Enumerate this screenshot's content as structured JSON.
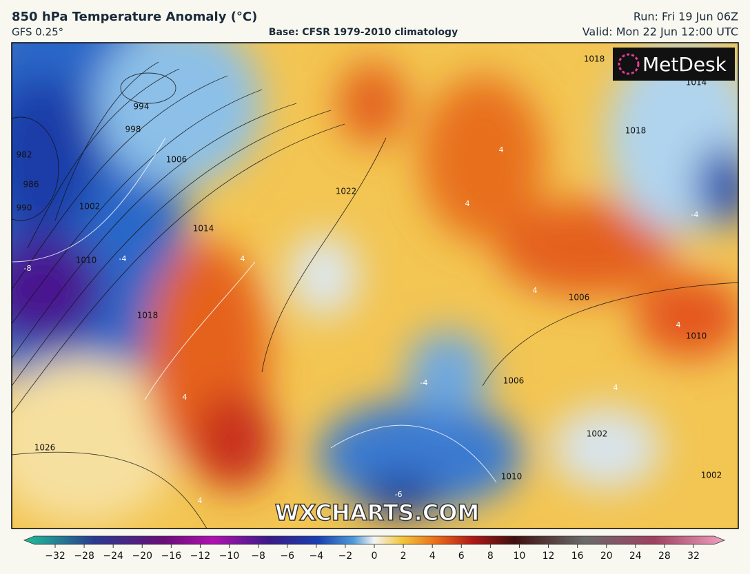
{
  "header": {
    "title": "850 hPa Temperature Anomaly (°C)",
    "model": "GFS 0.25°",
    "base": "Base: CFSR 1979-2010 climatology",
    "run": "Run: Fri 19 Jun 06Z",
    "valid": "Valid: Mon 22 Jun 12:00 UTC"
  },
  "map": {
    "logo": "MetDesk",
    "watermark": "WXCHARTS.COM",
    "isobar_labels": [
      "982",
      "986",
      "990",
      "994",
      "998",
      "1002",
      "1006",
      "1010",
      "1014",
      "1018",
      "1022",
      "1026",
      "1018",
      "1014",
      "1018",
      "1006",
      "1006",
      "1010",
      "1002",
      "1002",
      "1010"
    ],
    "anomaly_labels": [
      "-8",
      "-4",
      "-4",
      "4",
      "4",
      "4",
      "4",
      "4",
      "4",
      "-4",
      "-6",
      "4",
      "4"
    ]
  },
  "colorbar": {
    "ticks": [
      {
        "value": -32,
        "label": "−32"
      },
      {
        "value": -28,
        "label": "−28"
      },
      {
        "value": -24,
        "label": "−24"
      },
      {
        "value": -20,
        "label": "−20"
      },
      {
        "value": -16,
        "label": "−16"
      },
      {
        "value": -12,
        "label": "−12"
      },
      {
        "value": -10,
        "label": "−10"
      },
      {
        "value": -8,
        "label": "−8"
      },
      {
        "value": -6,
        "label": "−6"
      },
      {
        "value": -4,
        "label": "−4"
      },
      {
        "value": -2,
        "label": "−2"
      },
      0,
      2,
      4,
      6,
      8,
      10,
      12,
      16,
      20,
      24,
      28,
      32
    ]
  }
}
